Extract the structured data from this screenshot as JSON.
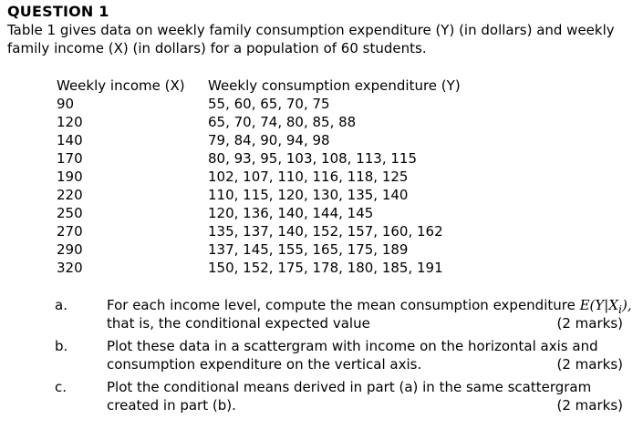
{
  "question": {
    "heading": "QUESTION 1",
    "intro_line1": "Table 1 gives data on weekly family consumption expenditure (Y) (in dollars) and weekly",
    "intro_line2": "family income (X) (in dollars) for a population of 60 students."
  },
  "table": {
    "headers": [
      "Weekly income (X)",
      "Weekly consumption expenditure (Y)"
    ],
    "rows": [
      {
        "income": "90",
        "expenditure": "55,  60,  65,  70,   75"
      },
      {
        "income": "120",
        "expenditure": "65,  70,  74,  80,   85,  88"
      },
      {
        "income": "140",
        "expenditure": "79,  84,  90,  94,   98"
      },
      {
        "income": "170",
        "expenditure": "80,  93,  95,  103,  108,  113,  115"
      },
      {
        "income": "190",
        "expenditure": "102, 107, 110, 116,  118,  125"
      },
      {
        "income": "220",
        "expenditure": "110, 115, 120, 130,  135,  140"
      },
      {
        "income": "250",
        "expenditure": "120, 136, 140, 144,  145"
      },
      {
        "income": "270",
        "expenditure": "135, 137, 140, 152,  157,  160,  162"
      },
      {
        "income": "290",
        "expenditure": "137, 145, 155, 165,  175,  189"
      },
      {
        "income": "320",
        "expenditure": "150, 152, 175, 178,  180,  185,  191"
      }
    ]
  },
  "parts": [
    {
      "letter": "a.",
      "line1": "For each income level, compute the mean consumption expenditure ",
      "line1_math": "E(Y|X",
      "line1_math_sub": "i",
      "line1_math_end": "),",
      "line2": "that is, the conditional expected value",
      "marks": "(2 marks)"
    },
    {
      "letter": "b.",
      "line1": "Plot these data in a scattergram with income on the horizontal axis and",
      "line2": "consumption expenditure on the vertical axis.",
      "marks": "(2 marks)"
    },
    {
      "letter": "c.",
      "line1": "Plot the conditional means derived in part (a) in the same scattergram",
      "line2": "created in part (b).",
      "marks": "(2 marks)"
    }
  ]
}
